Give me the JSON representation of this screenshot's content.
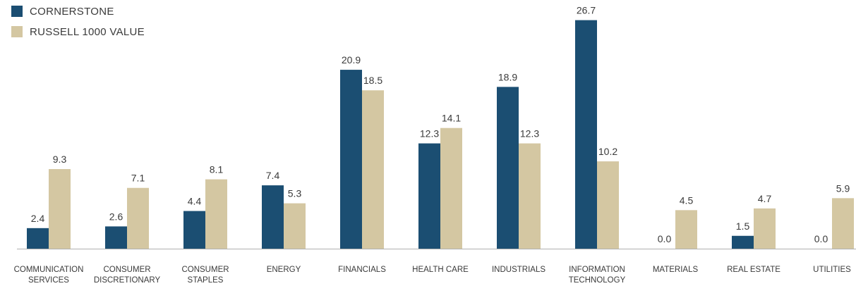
{
  "colors": {
    "cornerstone": "#1b4e72",
    "russell": "#d4c7a2",
    "text": "#3a3a3a",
    "axis": "#b0b0b0"
  },
  "legend": {
    "cornerstone_label": "CORNERSTONE",
    "russell_label": "RUSSELL 1000 VALUE"
  },
  "chart_data": {
    "type": "bar",
    "title": "",
    "xlabel": "",
    "ylabel": "",
    "ylim": [
      0,
      28
    ],
    "grid": false,
    "legend_position": "top-left",
    "categories": [
      [
        "COMMUNICATION",
        "SERVICES"
      ],
      [
        "CONSUMER",
        "DISCRETIONARY"
      ],
      [
        "CONSUMER",
        "STAPLES"
      ],
      [
        "ENERGY"
      ],
      [
        "FINANCIALS"
      ],
      [
        "HEALTH CARE"
      ],
      [
        "INDUSTRIALS"
      ],
      [
        "INFORMATION",
        "TECHNOLOGY"
      ],
      [
        "MATERIALS"
      ],
      [
        "REAL ESTATE"
      ],
      [
        "UTILITIES"
      ]
    ],
    "series": [
      {
        "name": "CORNERSTONE",
        "values": [
          2.4,
          2.6,
          4.4,
          7.4,
          20.9,
          12.3,
          18.9,
          26.7,
          0.0,
          1.5,
          0.0
        ]
      },
      {
        "name": "RUSSELL 1000 VALUE",
        "values": [
          9.3,
          7.1,
          8.1,
          5.3,
          18.5,
          14.1,
          12.3,
          10.2,
          4.5,
          4.7,
          5.9
        ]
      }
    ]
  }
}
